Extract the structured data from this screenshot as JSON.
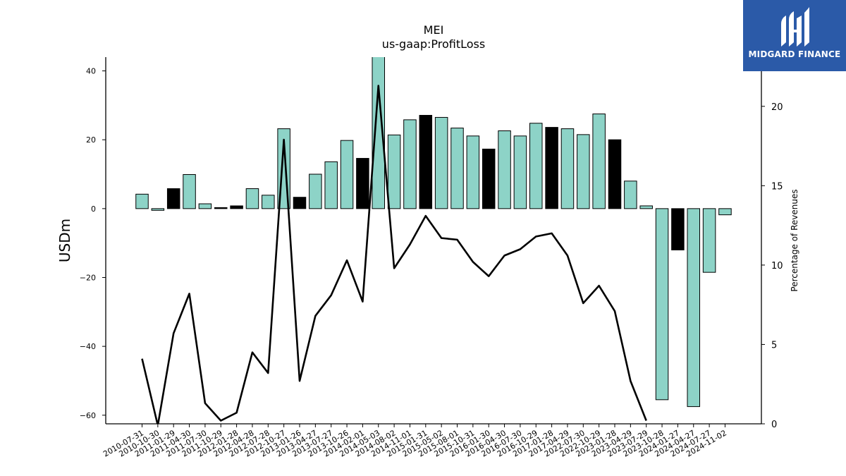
{
  "chart_data": {
    "type": "bar",
    "title": "MEI",
    "subtitle": "us-gaap:ProfitLoss",
    "ylabel": "USDm",
    "y2label": "Percentage of Revenues",
    "ylim": [
      -62.5,
      44
    ],
    "y2lim": [
      0,
      23.1
    ],
    "yticks": [
      -60,
      -40,
      -20,
      0,
      20,
      40
    ],
    "y2ticks": [
      0,
      5,
      10,
      15,
      20
    ],
    "categories": [
      "2010-07-31",
      "2010-10-30",
      "2011-01-29",
      "2011-04-30",
      "2011-07-30",
      "2011-10-29",
      "2012-01-28",
      "2012-04-28",
      "2012-07-28",
      "2012-10-27",
      "2013-01-26",
      "2013-04-27",
      "2013-07-27",
      "2013-10-26",
      "2014-02-01",
      "2014-05-03",
      "2014-08-02",
      "2014-11-01",
      "2015-01-31",
      "2015-05-02",
      "2015-08-01",
      "2015-10-31",
      "2016-01-30",
      "2016-04-30",
      "2016-07-30",
      "2016-10-29",
      "2017-01-28",
      "2017-04-29",
      "2022-07-30",
      "2022-10-29",
      "2023-01-28",
      "2023-04-29",
      "2023-07-29",
      "2023-10-28",
      "2024-01-27",
      "2024-04-27",
      "2024-07-27",
      "2024-11-02"
    ],
    "series": [
      {
        "kind": "bar",
        "values": [
          4.2,
          -0.5,
          5.8,
          9.9,
          1.4,
          0.3,
          0.8,
          5.8,
          3.9,
          23.2,
          3.3,
          10.0,
          13.6,
          19.8,
          14.6,
          45.0,
          21.4,
          25.8,
          27.1,
          26.5,
          23.4,
          21.1,
          17.3,
          22.6,
          21.1,
          24.8,
          23.6,
          23.2,
          21.5,
          27.5,
          20.0,
          8.0,
          0.8,
          -55.5,
          -12.0,
          -57.5,
          -18.5,
          -1.8
        ],
        "highlight": [
          false,
          false,
          true,
          false,
          false,
          true,
          true,
          false,
          false,
          false,
          true,
          false,
          false,
          false,
          true,
          false,
          false,
          false,
          true,
          false,
          false,
          false,
          true,
          false,
          false,
          false,
          true,
          false,
          false,
          false,
          true,
          false,
          false,
          false,
          true,
          false,
          false,
          false
        ]
      },
      {
        "kind": "line",
        "values": [
          4.1,
          -0.1,
          5.7,
          8.2,
          1.3,
          0.2,
          0.7,
          4.5,
          3.2,
          17.9,
          2.7,
          6.8,
          8.1,
          10.3,
          7.7,
          21.3,
          9.8,
          11.3,
          13.1,
          11.7,
          11.6,
          10.2,
          9.3,
          10.6,
          11.0,
          11.8,
          12.0,
          10.6,
          7.6,
          8.7,
          7.1,
          2.7,
          0.2,
          null,
          null,
          null,
          null,
          null
        ]
      }
    ],
    "colors": {
      "bar": "#8dd3c7",
      "highlight": "#000000",
      "edge": "#000000",
      "line": "#000000"
    },
    "grid": false
  },
  "logo": {
    "text": "MIDGARD FINANCE",
    "color": "#2b5aa8"
  }
}
